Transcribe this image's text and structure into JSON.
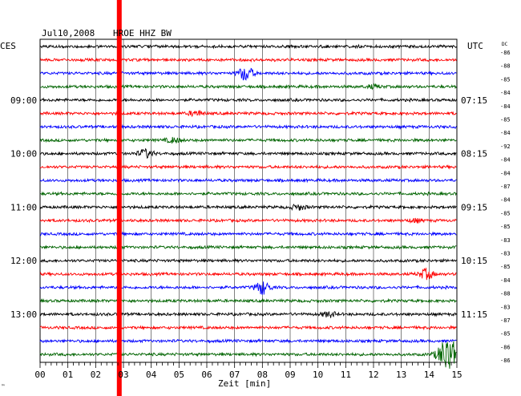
{
  "header": {
    "date": "Jul10,2008",
    "station": "HROE HHZ BW",
    "left_tz": "CES",
    "right_tz": "UTC",
    "dc_label": "DC"
  },
  "footer": {
    "mark": "™"
  },
  "chart_data": {
    "type": "line",
    "title": "Jul10,2008 HROE HHZ BW",
    "xlabel": "Zeit [min]",
    "x_ticks": [
      "00",
      "01",
      "02",
      "03",
      "04",
      "05",
      "06",
      "07",
      "08",
      "09",
      "10",
      "11",
      "12",
      "13",
      "14",
      "15"
    ],
    "xlim": [
      0,
      15
    ],
    "grid": true,
    "left_hour_labels": [
      {
        "row": 4,
        "text": "09:00"
      },
      {
        "row": 8,
        "text": "10:00"
      },
      {
        "row": 12,
        "text": "11:00"
      },
      {
        "row": 16,
        "text": "12:00"
      },
      {
        "row": 20,
        "text": "13:00"
      }
    ],
    "right_hour_labels": [
      {
        "row": 4,
        "text": "07:15"
      },
      {
        "row": 8,
        "text": "08:15"
      },
      {
        "row": 12,
        "text": "09:15"
      },
      {
        "row": 16,
        "text": "10:15"
      },
      {
        "row": 20,
        "text": "11:15"
      }
    ],
    "trace_colors": [
      "#000000",
      "#ff0000",
      "#0000ff",
      "#006400"
    ],
    "dc_offsets": [
      "-86",
      "-88",
      "-85",
      "-84",
      "-84",
      "-85",
      "-84",
      "-92",
      "-84",
      "-84",
      "-87",
      "-84",
      "-85",
      "-85",
      "-83",
      "-83",
      "-85",
      "-84",
      "-88",
      "-83",
      "-87",
      "-85",
      "-86",
      "-86"
    ],
    "red_marker_x": 2.85,
    "events": [
      {
        "row": 2,
        "x": 7.4,
        "amp": 9
      },
      {
        "row": 3,
        "x": 12.0,
        "amp": 2
      },
      {
        "row": 5,
        "x": 5.6,
        "amp": 3
      },
      {
        "row": 7,
        "x": 4.8,
        "amp": 3
      },
      {
        "row": 8,
        "x": 3.8,
        "amp": 5
      },
      {
        "row": 12,
        "x": 9.3,
        "amp": 3
      },
      {
        "row": 13,
        "x": 13.5,
        "amp": 2
      },
      {
        "row": 17,
        "x": 13.9,
        "amp": 6
      },
      {
        "row": 18,
        "x": 8.0,
        "amp": 8
      },
      {
        "row": 20,
        "x": 10.4,
        "amp": 3
      },
      {
        "row": 23,
        "x": 14.7,
        "amp": 22
      }
    ]
  }
}
